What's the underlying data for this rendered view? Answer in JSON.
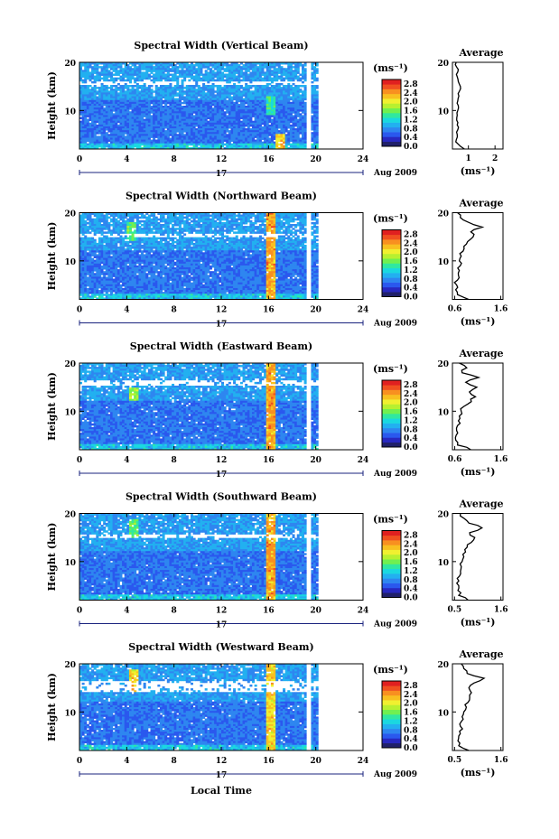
{
  "figure": {
    "xlabel": "Local Time",
    "date_label": "Aug 2009",
    "day_label": "17",
    "colorbar_unit": "(ms⁻¹)",
    "colorbar_ticks": [
      "0.0",
      "0.4",
      "0.8",
      "1.2",
      "1.6",
      "2.0",
      "2.4",
      "2.8"
    ],
    "colorbar_range": [
      0.0,
      3.0
    ],
    "colormap": [
      "#20206a",
      "#2828c0",
      "#2a58ee",
      "#2e86f0",
      "#22b0f0",
      "#1ad8e0",
      "#30e8a0",
      "#70f050",
      "#b8f030",
      "#f0f030",
      "#f8c020",
      "#f89020",
      "#f05020",
      "#e02020"
    ],
    "missing_color": "#ffffff"
  },
  "chart_data": [
    {
      "type": "heatmap",
      "title": "Spectral Width (Vertical Beam)",
      "ylabel": "Height (km)",
      "xlim": [
        0,
        24
      ],
      "ylim": [
        2,
        20
      ],
      "xticks": [
        0,
        4,
        8,
        12,
        16,
        20,
        24
      ],
      "yticks": [
        10,
        20
      ],
      "data_gap_hours": [
        [
          19.2,
          19.6
        ]
      ],
      "data_end_hours": 20.1,
      "features": [
        {
          "kind": "white_band",
          "height_km": [
            15.5,
            16.2
          ]
        },
        {
          "kind": "elevated_width",
          "hour": 16.2,
          "height_km": [
            9,
            13
          ],
          "value": 1.6
        },
        {
          "kind": "elevated_width",
          "hour": 17.0,
          "height_km": [
            2,
            5
          ],
          "value": 2.4
        }
      ],
      "profile": {
        "title": "Average",
        "xlabel": "(ms⁻¹)",
        "xlim": [
          0.4,
          2.3
        ],
        "xticks": [
          1,
          2
        ],
        "yticks": [
          10,
          20
        ],
        "heights_km": [
          2,
          3,
          4,
          5,
          6,
          7,
          8,
          9,
          10,
          11,
          12,
          13,
          14,
          15,
          16,
          17,
          18,
          19,
          20
        ],
        "values": [
          0.85,
          0.62,
          0.55,
          0.58,
          0.6,
          0.58,
          0.56,
          0.58,
          0.6,
          0.62,
          0.6,
          0.64,
          0.66,
          0.7,
          0.62,
          0.58,
          0.6,
          0.56,
          0.54
        ]
      }
    },
    {
      "type": "heatmap",
      "title": "Spectral Width (Northward Beam)",
      "ylabel": "Height (km)",
      "xlim": [
        0,
        24
      ],
      "ylim": [
        2,
        20
      ],
      "xticks": [
        0,
        4,
        8,
        12,
        16,
        20,
        24
      ],
      "yticks": [
        10,
        20
      ],
      "data_gap_hours": [
        [
          19.2,
          19.6
        ]
      ],
      "data_end_hours": 20.1,
      "features": [
        {
          "kind": "white_band",
          "height_km": [
            15.0,
            15.8
          ]
        },
        {
          "kind": "elevated_width",
          "hour": 16.2,
          "height_km": [
            2,
            20
          ],
          "value": 2.6
        },
        {
          "kind": "elevated_width",
          "hour": 4.4,
          "height_km": [
            14,
            18
          ],
          "value": 1.8
        }
      ],
      "profile": {
        "title": "Average",
        "xlabel": "(ms⁻¹)",
        "xlim": [
          0.55,
          1.65
        ],
        "xticks": [
          0.6,
          1.6
        ],
        "yticks": [
          10,
          20
        ],
        "heights_km": [
          2,
          3,
          4,
          5,
          6,
          7,
          8,
          9,
          10,
          11,
          12,
          13,
          14,
          15,
          16,
          17,
          18,
          19,
          20
        ],
        "values": [
          0.9,
          0.66,
          0.62,
          0.64,
          0.66,
          0.68,
          0.7,
          0.72,
          0.7,
          0.74,
          0.78,
          0.8,
          0.88,
          1.0,
          0.95,
          1.2,
          0.9,
          0.72,
          0.66
        ]
      }
    },
    {
      "type": "heatmap",
      "title": "Spectral Width (Eastward Beam)",
      "ylabel": "Height (km)",
      "xlim": [
        0,
        24
      ],
      "ylim": [
        2,
        20
      ],
      "xticks": [
        0,
        4,
        8,
        12,
        16,
        20,
        24
      ],
      "yticks": [
        10,
        20
      ],
      "data_gap_hours": [
        [
          19.2,
          19.6
        ]
      ],
      "data_end_hours": 20.1,
      "features": [
        {
          "kind": "white_band",
          "height_km": [
            15.5,
            16.4
          ]
        },
        {
          "kind": "elevated_width",
          "hour": 16.2,
          "height_km": [
            2,
            20
          ],
          "value": 2.6
        },
        {
          "kind": "elevated_width",
          "hour": 4.6,
          "height_km": [
            12,
            15
          ],
          "value": 2.0
        }
      ],
      "profile": {
        "title": "Average",
        "xlabel": "(ms⁻¹)",
        "xlim": [
          0.55,
          1.65
        ],
        "xticks": [
          0.6,
          1.6
        ],
        "yticks": [
          10,
          20
        ],
        "heights_km": [
          2,
          3,
          4,
          5,
          6,
          7,
          8,
          9,
          10,
          11,
          12,
          13,
          14,
          15,
          16,
          17,
          18,
          19,
          20
        ],
        "values": [
          0.95,
          0.66,
          0.62,
          0.63,
          0.64,
          0.66,
          0.68,
          0.7,
          0.74,
          0.8,
          0.96,
          1.05,
          0.92,
          1.08,
          0.84,
          1.12,
          0.76,
          0.86,
          0.7
        ]
      }
    },
    {
      "type": "heatmap",
      "title": "Spectral Width (Southward Beam)",
      "ylabel": "Height (km)",
      "xlim": [
        0,
        24
      ],
      "ylim": [
        2,
        20
      ],
      "xticks": [
        0,
        4,
        8,
        12,
        16,
        20,
        24
      ],
      "yticks": [
        10,
        20
      ],
      "data_gap_hours": [
        [
          19.2,
          19.6
        ]
      ],
      "data_end_hours": 20.1,
      "features": [
        {
          "kind": "white_band",
          "height_km": [
            15.0,
            15.8
          ]
        },
        {
          "kind": "elevated_width",
          "hour": 16.2,
          "height_km": [
            2,
            20
          ],
          "value": 2.6
        },
        {
          "kind": "elevated_width",
          "hour": 4.6,
          "height_km": [
            15,
            19
          ],
          "value": 1.8
        }
      ],
      "profile": {
        "title": "Average",
        "xlabel": "(ms⁻¹)",
        "xlim": [
          0.45,
          1.65
        ],
        "xticks": [
          0.5,
          1.6
        ],
        "yticks": [
          10,
          20
        ],
        "heights_km": [
          2,
          3,
          4,
          5,
          6,
          7,
          8,
          9,
          10,
          11,
          12,
          13,
          14,
          15,
          16,
          17,
          18,
          19,
          20
        ],
        "values": [
          0.82,
          0.6,
          0.58,
          0.6,
          0.6,
          0.62,
          0.64,
          0.66,
          0.68,
          0.72,
          0.76,
          0.8,
          0.9,
          0.98,
          0.86,
          1.15,
          0.84,
          0.72,
          0.64
        ]
      }
    },
    {
      "type": "heatmap",
      "title": "Spectral Width (Westward Beam)",
      "ylabel": "Height (km)",
      "xlim": [
        0,
        24
      ],
      "ylim": [
        2,
        20
      ],
      "xticks": [
        0,
        4,
        8,
        12,
        16,
        20,
        24
      ],
      "yticks": [
        10,
        20
      ],
      "data_gap_hours": [
        [
          19.2,
          19.6
        ]
      ],
      "data_end_hours": 20.1,
      "features": [
        {
          "kind": "white_band",
          "height_km": [
            14.0,
            16.5
          ]
        },
        {
          "kind": "elevated_width",
          "hour": 16.2,
          "height_km": [
            2,
            20
          ],
          "value": 2.4
        },
        {
          "kind": "elevated_width",
          "hour": 4.6,
          "height_km": [
            14,
            19
          ],
          "value": 2.4
        }
      ],
      "profile": {
        "title": "Average",
        "xlabel": "(ms⁻¹)",
        "xlim": [
          0.45,
          1.65
        ],
        "xticks": [
          0.5,
          1.6
        ],
        "yticks": [
          10,
          20
        ],
        "heights_km": [
          2,
          3,
          4,
          5,
          6,
          7,
          8,
          9,
          10,
          11,
          12,
          13,
          14,
          15,
          16,
          17,
          18,
          19,
          20
        ],
        "values": [
          0.84,
          0.6,
          0.58,
          0.6,
          0.62,
          0.64,
          0.66,
          0.68,
          0.72,
          0.78,
          0.82,
          0.86,
          0.9,
          0.84,
          0.96,
          1.2,
          0.8,
          0.72,
          0.66
        ]
      }
    }
  ]
}
